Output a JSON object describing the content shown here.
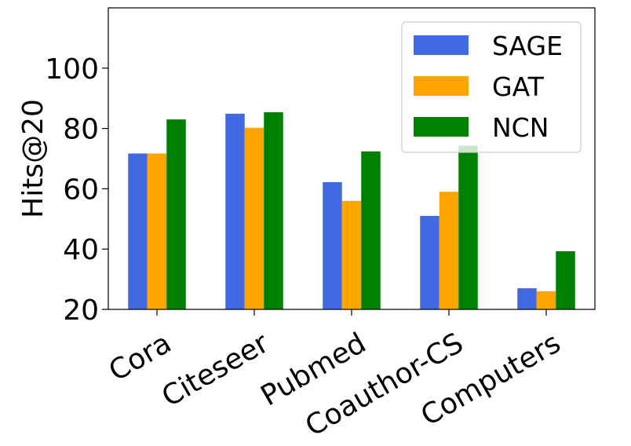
{
  "chart_data": {
    "type": "bar",
    "title": "",
    "xlabel": "",
    "ylabel": "Hits@20",
    "ylim": [
      20,
      120
    ],
    "yticks": [
      20,
      40,
      60,
      80,
      100
    ],
    "grid": false,
    "legend_position": "top-right",
    "categories": [
      "Cora",
      "Citeseer",
      "Pubmed",
      "Coauthor-CS",
      "Computers"
    ],
    "series": [
      {
        "name": "SAGE",
        "color": "#4169e1",
        "values": [
          71.7,
          84.9,
          62.2,
          51.0,
          27.0
        ]
      },
      {
        "name": "GAT",
        "color": "#ffa500",
        "values": [
          71.7,
          80.2,
          56.0,
          59.0,
          26.0
        ]
      },
      {
        "name": "NCN",
        "color": "#008000",
        "values": [
          83.0,
          85.4,
          72.4,
          74.3,
          39.3
        ]
      }
    ]
  }
}
